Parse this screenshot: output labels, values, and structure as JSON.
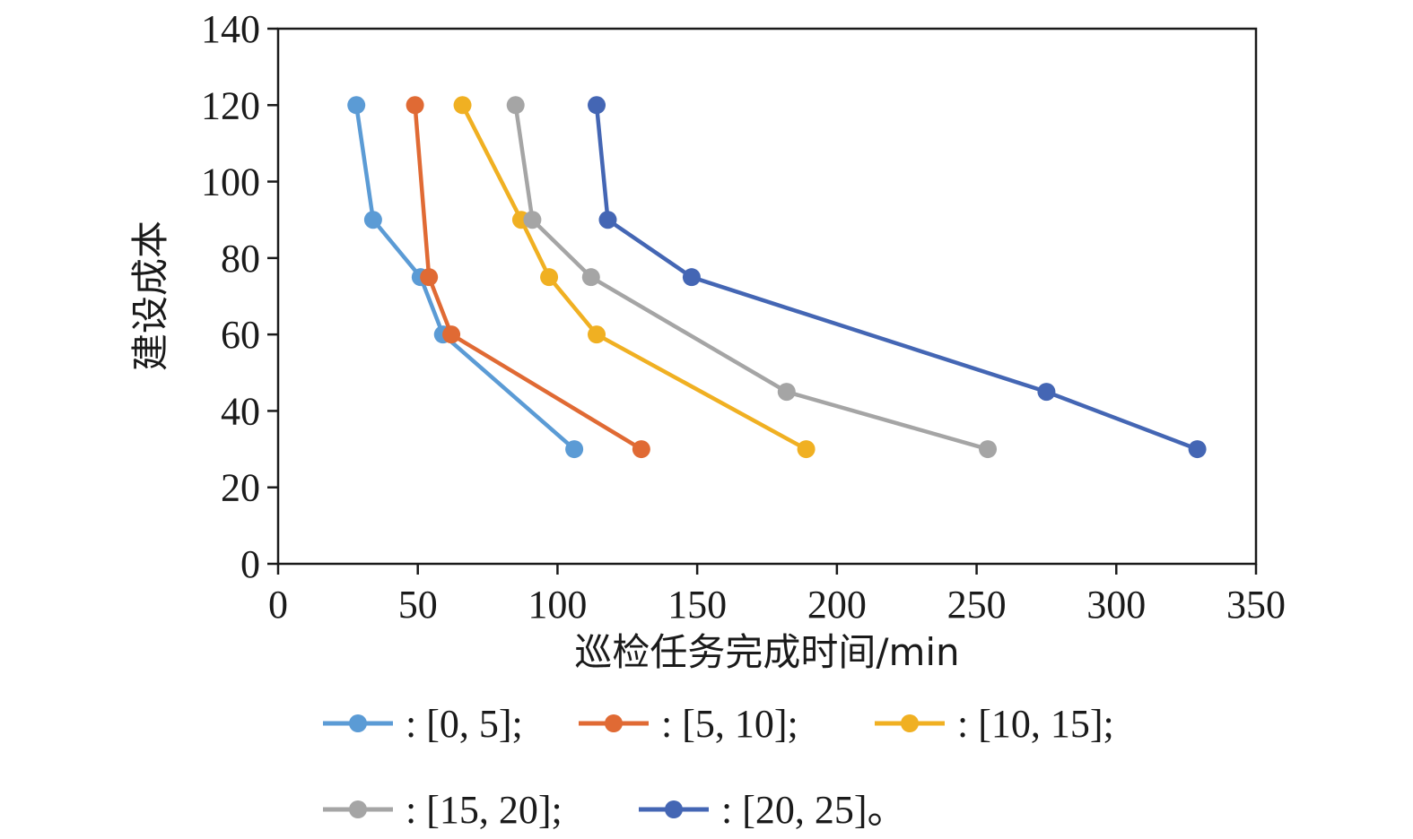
{
  "chart_data": {
    "type": "line",
    "xlabel": "巡检任务完成时间/min",
    "ylabel": "建设成本",
    "xlim": [
      0,
      350
    ],
    "ylim": [
      0,
      140
    ],
    "xticks": [
      "0",
      "50",
      "100",
      "150",
      "200",
      "250",
      "300",
      "350"
    ],
    "yticks": [
      "0",
      "20",
      "40",
      "60",
      "80",
      "100",
      "120",
      "140"
    ],
    "legend_position": "bottom",
    "series": [
      {
        "name": ": [0, 5];",
        "color": "#5b9bd5",
        "points": [
          [
            28,
            120
          ],
          [
            34,
            90
          ],
          [
            51,
            75
          ],
          [
            59,
            60
          ],
          [
            106,
            30
          ]
        ]
      },
      {
        "name": ": [5, 10];",
        "color": "#e06a34",
        "points": [
          [
            49,
            120
          ],
          [
            54,
            75
          ],
          [
            62,
            60
          ],
          [
            130,
            30
          ]
        ]
      },
      {
        "name": ": [10, 15];",
        "color": "#f0b022",
        "points": [
          [
            66,
            120
          ],
          [
            87,
            90
          ],
          [
            97,
            75
          ],
          [
            114,
            60
          ],
          [
            189,
            30
          ]
        ]
      },
      {
        "name": ": [15, 20];",
        "color": "#a5a5a5",
        "points": [
          [
            85,
            120
          ],
          [
            91,
            90
          ],
          [
            112,
            75
          ],
          [
            182,
            45
          ],
          [
            254,
            30
          ]
        ]
      },
      {
        "name": ": [20, 25]。",
        "color": "#4466b4",
        "points": [
          [
            114,
            120
          ],
          [
            118,
            90
          ],
          [
            148,
            75
          ],
          [
            275,
            45
          ],
          [
            329,
            30
          ]
        ]
      }
    ]
  }
}
